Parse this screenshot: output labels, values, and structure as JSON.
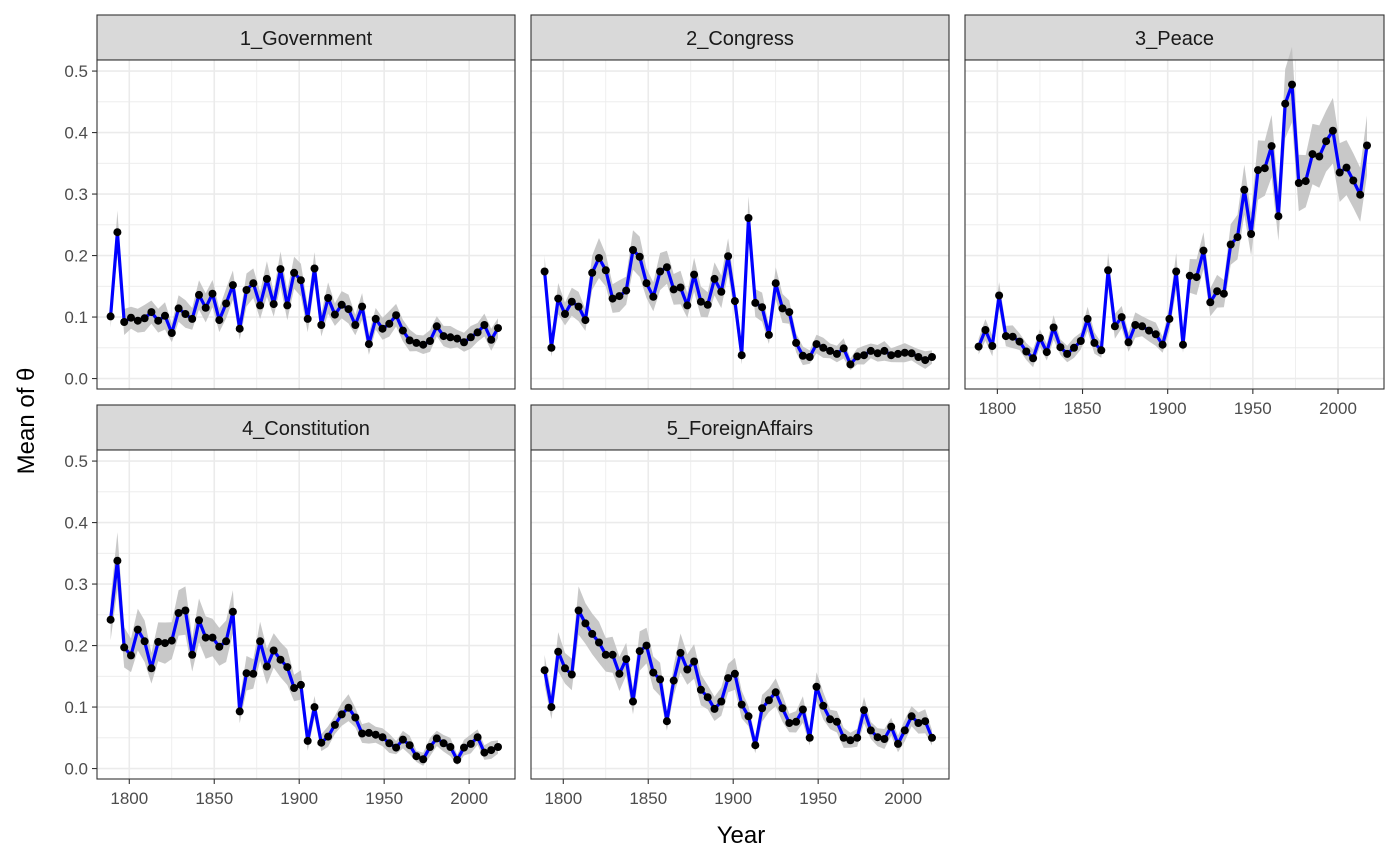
{
  "chart_data": {
    "type": "line",
    "facet_layout": "3 columns, 2 rows; shared x and y axes",
    "xlabel": "Year",
    "ylabel": "Mean of θ",
    "xlim": [
      1781,
      2027
    ],
    "ylim": [
      -0.017,
      0.518
    ],
    "x_ticks": [
      1800,
      1850,
      1900,
      1950,
      2000
    ],
    "y_ticks": [
      0.0,
      0.1,
      0.2,
      0.3,
      0.4,
      0.5
    ],
    "y_tick_labels": [
      "0.0",
      "0.1",
      "0.2",
      "0.3",
      "0.4",
      "0.5"
    ],
    "grid": true,
    "line_color": "#0000ff",
    "point_color": "#000000",
    "ribbon_color": "#bebebe",
    "x": [
      1789,
      1793,
      1797,
      1801,
      1805,
      1809,
      1813,
      1817,
      1821,
      1825,
      1829,
      1833,
      1837,
      1841,
      1845,
      1849,
      1853,
      1857,
      1861,
      1865,
      1869,
      1873,
      1877,
      1881,
      1885,
      1889,
      1893,
      1897,
      1901,
      1905,
      1909,
      1913,
      1917,
      1921,
      1925,
      1929,
      1933,
      1937,
      1941,
      1945,
      1949,
      1953,
      1957,
      1961,
      1965,
      1969,
      1973,
      1977,
      1981,
      1985,
      1989,
      1993,
      1997,
      2001,
      2005,
      2009,
      2013,
      2017
    ],
    "series": [
      {
        "name": "1_Government",
        "values": [
          0.101,
          0.238,
          0.092,
          0.099,
          0.094,
          0.098,
          0.108,
          0.094,
          0.102,
          0.074,
          0.114,
          0.105,
          0.097,
          0.136,
          0.115,
          0.138,
          0.095,
          0.122,
          0.152,
          0.081,
          0.144,
          0.155,
          0.119,
          0.162,
          0.121,
          0.178,
          0.119,
          0.172,
          0.16,
          0.097,
          0.179,
          0.087,
          0.131,
          0.104,
          0.12,
          0.113,
          0.087,
          0.117,
          0.056,
          0.097,
          0.081,
          0.089,
          0.103,
          0.078,
          0.062,
          0.058,
          0.055,
          0.061,
          0.085,
          0.069,
          0.067,
          0.065,
          0.059,
          0.067,
          0.075,
          0.087,
          0.063,
          0.082
        ]
      },
      {
        "name": "2_Congress",
        "values": [
          0.174,
          0.05,
          0.13,
          0.105,
          0.125,
          0.117,
          0.095,
          0.172,
          0.196,
          0.176,
          0.13,
          0.134,
          0.143,
          0.209,
          0.198,
          0.155,
          0.133,
          0.174,
          0.181,
          0.145,
          0.148,
          0.119,
          0.169,
          0.125,
          0.12,
          0.162,
          0.141,
          0.199,
          0.126,
          0.038,
          0.261,
          0.123,
          0.116,
          0.071,
          0.155,
          0.114,
          0.108,
          0.058,
          0.037,
          0.035,
          0.056,
          0.05,
          0.045,
          0.04,
          0.049,
          0.023,
          0.036,
          0.038,
          0.045,
          0.041,
          0.045,
          0.038,
          0.04,
          0.042,
          0.041,
          0.035,
          0.03,
          0.035
        ]
      },
      {
        "name": "3_Peace",
        "values": [
          0.052,
          0.079,
          0.053,
          0.135,
          0.069,
          0.068,
          0.06,
          0.044,
          0.033,
          0.066,
          0.043,
          0.083,
          0.051,
          0.04,
          0.05,
          0.061,
          0.097,
          0.058,
          0.046,
          0.176,
          0.085,
          0.1,
          0.059,
          0.087,
          0.085,
          0.078,
          0.072,
          0.055,
          0.097,
          0.174,
          0.055,
          0.167,
          0.165,
          0.208,
          0.124,
          0.142,
          0.138,
          0.218,
          0.23,
          0.307,
          0.235,
          0.339,
          0.342,
          0.378,
          0.264,
          0.447,
          0.478,
          0.318,
          0.321,
          0.365,
          0.361,
          0.386,
          0.403,
          0.335,
          0.343,
          0.322,
          0.299,
          0.379
        ]
      },
      {
        "name": "4_Constitution",
        "values": [
          0.242,
          0.338,
          0.197,
          0.184,
          0.226,
          0.207,
          0.163,
          0.206,
          0.204,
          0.208,
          0.253,
          0.257,
          0.185,
          0.241,
          0.213,
          0.213,
          0.198,
          0.207,
          0.255,
          0.093,
          0.155,
          0.154,
          0.207,
          0.166,
          0.192,
          0.177,
          0.165,
          0.131,
          0.136,
          0.045,
          0.1,
          0.042,
          0.052,
          0.071,
          0.088,
          0.099,
          0.083,
          0.057,
          0.058,
          0.055,
          0.051,
          0.041,
          0.034,
          0.047,
          0.038,
          0.02,
          0.015,
          0.035,
          0.049,
          0.041,
          0.035,
          0.014,
          0.034,
          0.04,
          0.051,
          0.026,
          0.03,
          0.035
        ]
      },
      {
        "name": "5_ForeignAffairs",
        "values": [
          0.16,
          0.1,
          0.19,
          0.163,
          0.153,
          0.257,
          0.236,
          0.219,
          0.205,
          0.185,
          0.185,
          0.154,
          0.178,
          0.109,
          0.191,
          0.2,
          0.156,
          0.145,
          0.077,
          0.143,
          0.188,
          0.161,
          0.174,
          0.128,
          0.116,
          0.097,
          0.109,
          0.147,
          0.154,
          0.104,
          0.085,
          0.038,
          0.098,
          0.111,
          0.124,
          0.098,
          0.074,
          0.076,
          0.096,
          0.05,
          0.133,
          0.102,
          0.08,
          0.076,
          0.05,
          0.046,
          0.05,
          0.095,
          0.062,
          0.051,
          0.048,
          0.068,
          0.04,
          0.062,
          0.085,
          0.074,
          0.077,
          0.05
        ]
      }
    ]
  }
}
